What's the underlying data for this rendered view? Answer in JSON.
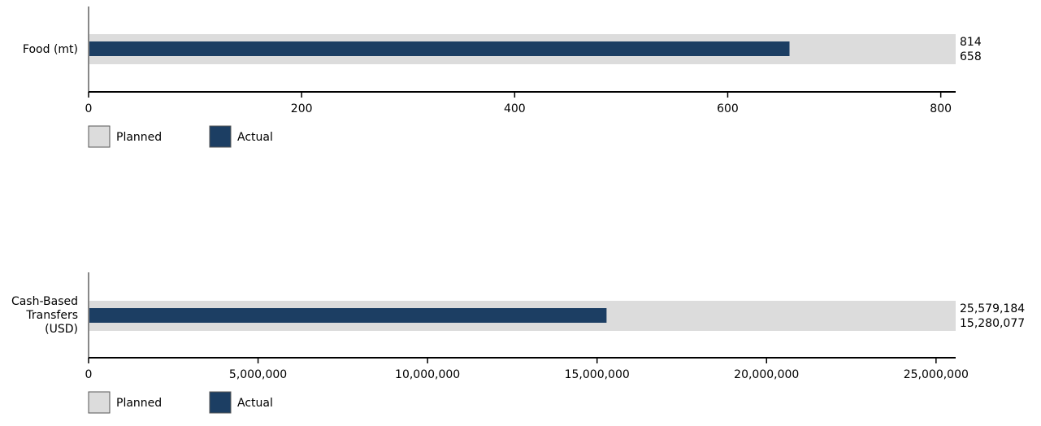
{
  "colors": {
    "planned": "#dcdcdc",
    "actual": "#1c3e63",
    "axis": "#000000",
    "category_axis": "#888888"
  },
  "legend": {
    "planned_label": "Planned",
    "actual_label": "Actual"
  },
  "chart_data": [
    {
      "type": "bar",
      "category_lines": [
        "Food (mt)"
      ],
      "planned": 814,
      "actual": 658,
      "planned_label": "814",
      "actual_label": "658",
      "xlim": [
        0,
        814
      ],
      "ticks": [
        0,
        200,
        400,
        600,
        800
      ],
      "tick_labels": [
        "0",
        "200",
        "400",
        "600",
        "800"
      ]
    },
    {
      "type": "bar",
      "category_lines": [
        "Cash-Based",
        "Transfers",
        "(USD)"
      ],
      "planned": 25579184,
      "actual": 15280077,
      "planned_label": "25,579,184",
      "actual_label": "15,280,077",
      "xlim": [
        0,
        25579184
      ],
      "ticks": [
        0,
        5000000,
        10000000,
        15000000,
        20000000,
        25000000
      ],
      "tick_labels": [
        "0",
        "5,000,000",
        "10,000,000",
        "15,000,000",
        "20,000,000",
        "25,000,000"
      ]
    }
  ]
}
